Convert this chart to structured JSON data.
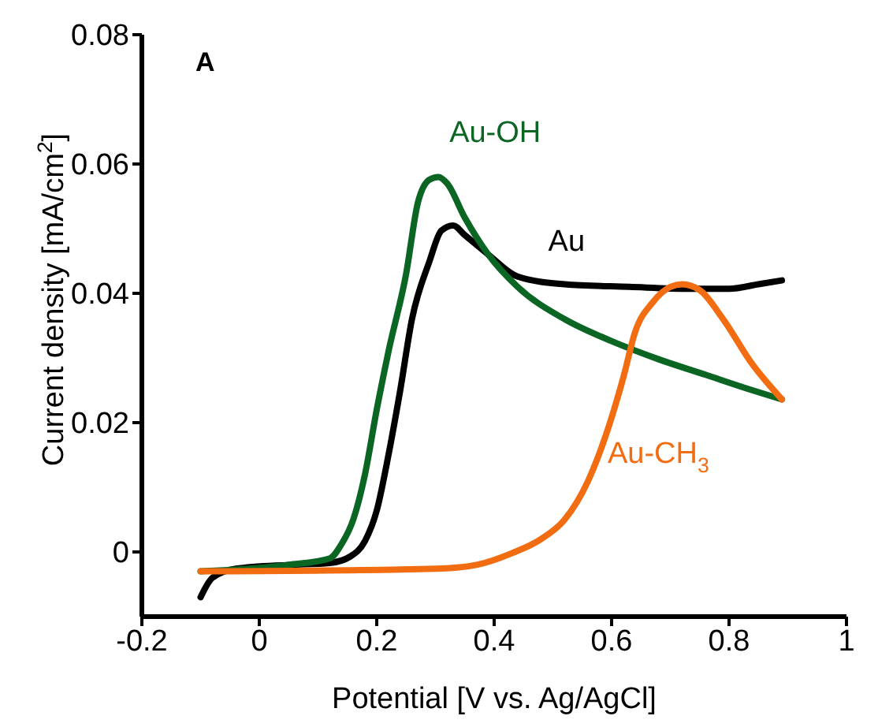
{
  "chart_data": {
    "type": "line",
    "xlabel": "Potential [V vs. Ag/AgCl]",
    "ylabel": "Current density [mA/cm$^{2}$]",
    "annotations": [
      "A"
    ],
    "xlim": [
      -0.2,
      1.0
    ],
    "xticks": [
      -0.2,
      0,
      0.2,
      0.4,
      0.6,
      0.8,
      1
    ],
    "ylim": [
      -0.01,
      0.08
    ],
    "yticks": [
      0,
      0.02,
      0.04,
      0.06,
      0.08
    ],
    "grid": false,
    "legend": false,
    "marker": "none",
    "line_style": "solid",
    "series": [
      {
        "name": "Au",
        "color": "#000000",
        "x": [
          -0.1,
          -0.08,
          -0.04,
          0.05,
          0.12,
          0.155,
          0.18,
          0.2,
          0.22,
          0.24,
          0.26,
          0.29,
          0.31,
          0.33,
          0.35,
          0.39,
          0.44,
          0.52,
          0.63,
          0.73,
          0.8,
          0.85,
          0.89
        ],
        "values": [
          -0.007,
          -0.004,
          -0.0026,
          -0.002,
          -0.0017,
          -0.0007,
          0.0017,
          0.0064,
          0.015,
          0.025,
          0.036,
          0.045,
          0.0497,
          0.0505,
          0.049,
          0.046,
          0.0426,
          0.0414,
          0.041,
          0.0407,
          0.0407,
          0.0414,
          0.042
        ]
      },
      {
        "name": "Au-OH",
        "color": "#0b6623",
        "x": [
          -0.1,
          0.05,
          0.12,
          0.14,
          0.16,
          0.18,
          0.2,
          0.22,
          0.25,
          0.27,
          0.29,
          0.305,
          0.32,
          0.35,
          0.39,
          0.44,
          0.52,
          0.6,
          0.68,
          0.76,
          0.84,
          0.89
        ],
        "values": [
          -0.003,
          -0.002,
          -0.001,
          0.0012,
          0.005,
          0.012,
          0.022,
          0.031,
          0.043,
          0.054,
          0.0576,
          0.058,
          0.057,
          0.0517,
          0.046,
          0.041,
          0.036,
          0.0326,
          0.0298,
          0.0274,
          0.025,
          0.0236
        ]
      },
      {
        "name": "Au-CH$_{3}$",
        "color": "#f26d12",
        "x": [
          -0.1,
          0.3,
          0.37,
          0.43,
          0.48,
          0.52,
          0.56,
          0.59,
          0.62,
          0.64,
          0.67,
          0.7,
          0.72,
          0.75,
          0.79,
          0.84,
          0.89
        ],
        "values": [
          -0.003,
          -0.0026,
          -0.002,
          -0.0002,
          0.002,
          0.005,
          0.011,
          0.018,
          0.027,
          0.034,
          0.0386,
          0.041,
          0.0414,
          0.0405,
          0.036,
          0.029,
          0.0236
        ]
      }
    ]
  }
}
